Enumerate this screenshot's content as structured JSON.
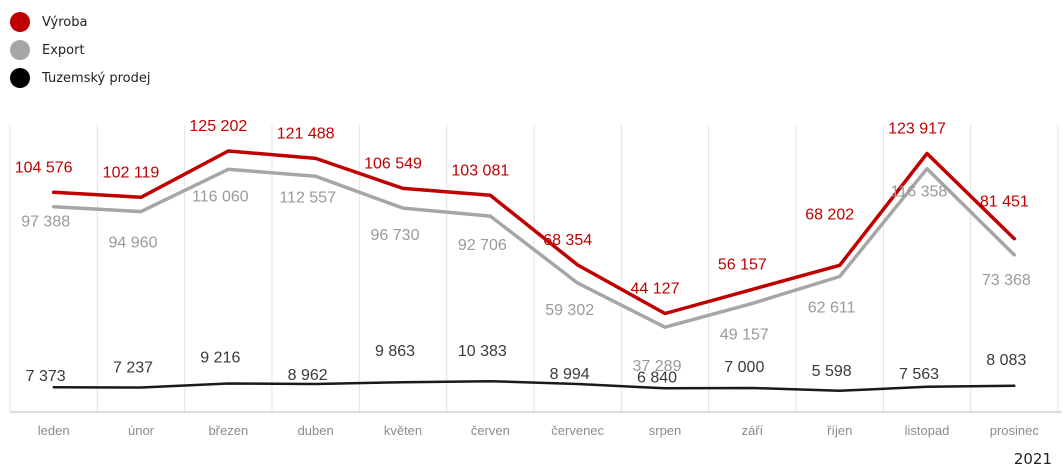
{
  "chart_data": {
    "type": "line",
    "categories": [
      "leden",
      "únor",
      "březen",
      "duben",
      "květen",
      "červen",
      "červenec",
      "srpen",
      "září",
      "říjen",
      "listopad",
      "prosinec"
    ],
    "series": [
      {
        "name": "Výroba",
        "color": "#c00000",
        "values": [
          104576,
          102119,
          125202,
          121488,
          106549,
          103081,
          68354,
          44127,
          56157,
          68202,
          123917,
          81451
        ],
        "labels": [
          "104 576",
          "102 119",
          "125 202",
          "121 488",
          "106 549",
          "103 081",
          "68 354",
          "44 127",
          "56 157",
          "68 202",
          "123 917",
          "81 451"
        ]
      },
      {
        "name": "Export",
        "color": "#a6a6a6",
        "values": [
          97388,
          94960,
          116060,
          112557,
          96730,
          92706,
          59302,
          37289,
          49157,
          62611,
          116358,
          73368
        ],
        "labels": [
          "97 388",
          "94 960",
          "116 060",
          "112 557",
          "96 730",
          "92 706",
          "59 302",
          "37 289",
          "49 157",
          "62 611",
          "116 358",
          "73 368"
        ]
      },
      {
        "name": "Tuzemský prodej",
        "color": "#1a1a1a",
        "values": [
          7373,
          7237,
          9216,
          8962,
          9863,
          10383,
          8994,
          6840,
          7000,
          5598,
          7563,
          8083
        ],
        "labels": [
          "7 373",
          "7 237",
          "9 216",
          "8 962",
          "9 863",
          "10 383",
          "8 994",
          "6 840",
          "7 000",
          "5 598",
          "7 563",
          "8 083"
        ]
      }
    ],
    "year_label": "2021",
    "legend_position": "top-left",
    "grid": "vertical"
  }
}
